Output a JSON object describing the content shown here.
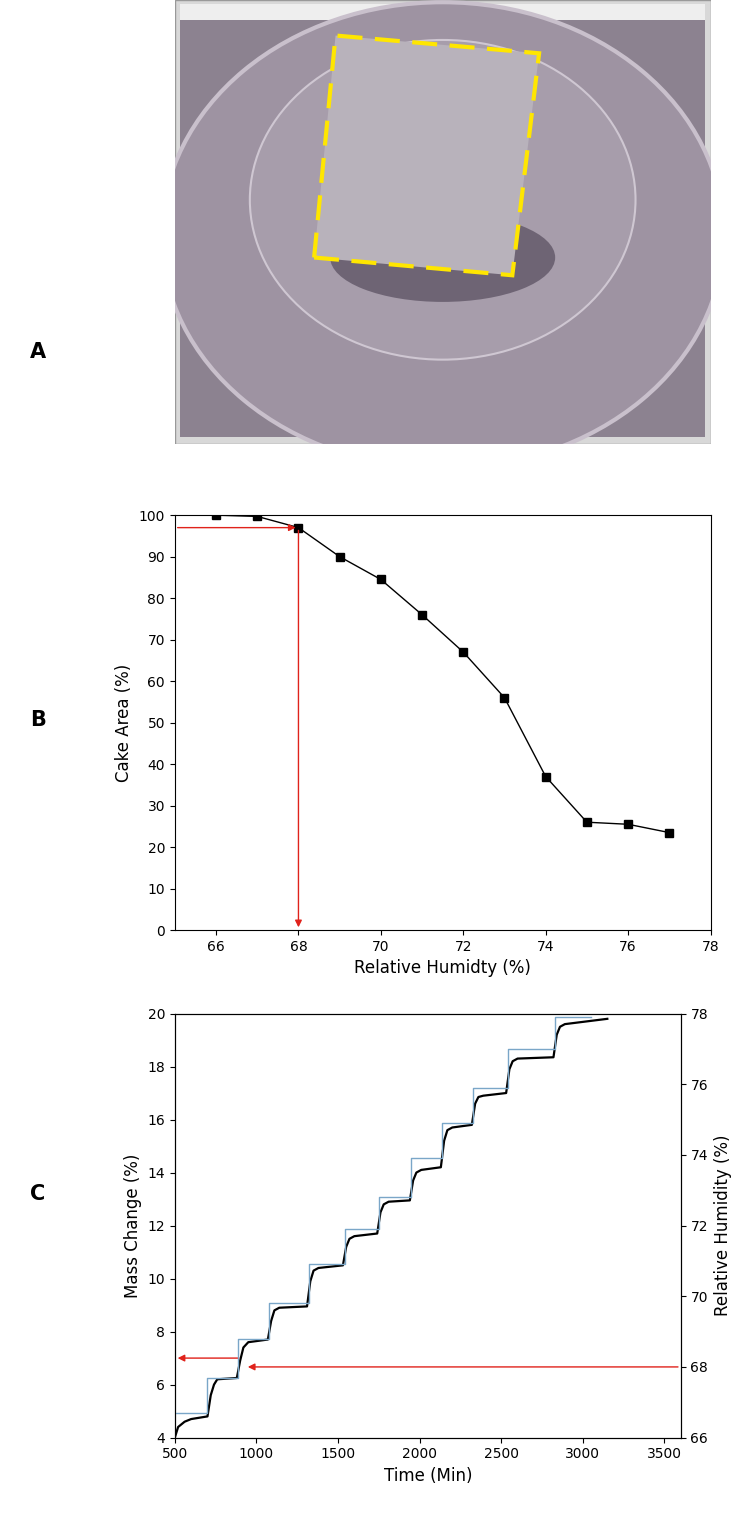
{
  "chart_data": [
    {
      "type": "image",
      "panel": "A"
    },
    {
      "type": "line",
      "panel": "B",
      "x_label": "Relative Humidty (%)",
      "y_label": "Cake Area (%)",
      "x": [
        66,
        67,
        68,
        69,
        70,
        71,
        72,
        73,
        74,
        75,
        76,
        77
      ],
      "values": [
        100,
        99.7,
        97,
        90,
        84.5,
        76,
        67,
        56,
        37,
        26,
        25.5,
        23.5
      ],
      "color": "#000000",
      "marker": "square",
      "line_style": "solid",
      "xlim": [
        65,
        78
      ],
      "xticks": [
        66,
        68,
        70,
        72,
        74,
        76,
        78
      ],
      "ylim": [
        0,
        100
      ],
      "yticks": [
        0,
        10,
        20,
        30,
        40,
        50,
        60,
        70,
        80,
        90,
        100
      ],
      "highlight": {
        "x": 68,
        "y": 97
      }
    },
    {
      "type": "line",
      "panel": "C",
      "x_label": "Time (Min)",
      "y_label": "Mass Change (%)",
      "y2_label": "Relative Humidity (%)",
      "series": [
        {
          "name": "Mass Change",
          "color": "#000000",
          "line_style": "solid",
          "x": [
            500,
            520,
            560,
            600,
            700,
            720,
            740,
            760,
            880,
            900,
            920,
            950,
            1070,
            1090,
            1110,
            1140,
            1310,
            1330,
            1350,
            1380,
            1530,
            1550,
            1570,
            1600,
            1740,
            1760,
            1780,
            1810,
            1940,
            1960,
            1980,
            2010,
            2130,
            2150,
            2170,
            2200,
            2320,
            2340,
            2360,
            2390,
            2530,
            2550,
            2570,
            2600,
            2820,
            2840,
            2860,
            2890,
            3150
          ],
          "values": [
            4.0,
            4.4,
            4.6,
            4.7,
            4.8,
            5.6,
            6.0,
            6.2,
            6.25,
            6.9,
            7.4,
            7.6,
            7.7,
            8.4,
            8.8,
            8.9,
            8.95,
            9.9,
            10.3,
            10.4,
            10.5,
            11.2,
            11.5,
            11.6,
            11.7,
            12.5,
            12.8,
            12.9,
            12.95,
            13.7,
            14.0,
            14.1,
            14.2,
            15.2,
            15.6,
            15.7,
            15.8,
            16.6,
            16.85,
            16.9,
            17.0,
            17.9,
            18.2,
            18.3,
            18.35,
            19.2,
            19.5,
            19.6,
            19.8
          ]
        },
        {
          "name": "Relative Humidity",
          "color": "#7aa6c8",
          "line_style": "steps",
          "axis": "y2",
          "x": [
            500,
            700,
            890,
            1080,
            1320,
            1540,
            1750,
            1950,
            2140,
            2330,
            2540,
            2830,
            3050
          ],
          "values": [
            66.7,
            67.7,
            68.8,
            69.8,
            70.9,
            71.9,
            72.8,
            73.9,
            74.9,
            75.9,
            77.0,
            77.9,
            77.9
          ]
        }
      ],
      "xlim": [
        500,
        3600
      ],
      "xticks": [
        500,
        1000,
        1500,
        2000,
        2500,
        3000,
        3500
      ],
      "ylim": [
        4,
        20
      ],
      "yticks": [
        4,
        6,
        8,
        10,
        12,
        14,
        16,
        18,
        20
      ],
      "y2lim": [
        66,
        78
      ],
      "y2ticks": [
        66,
        68,
        70,
        72,
        74,
        76,
        78
      ],
      "highlight": {
        "x": 910,
        "y": 7,
        "y2": 68
      }
    }
  ]
}
